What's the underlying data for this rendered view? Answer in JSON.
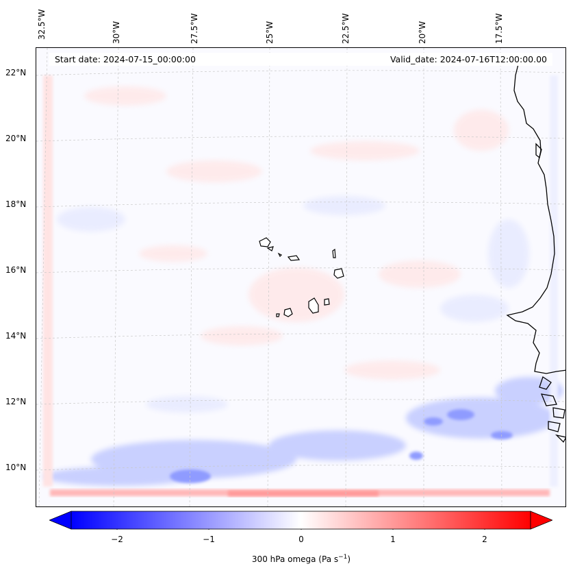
{
  "map": {
    "lon_labels": [
      "32.5°W",
      "30°W",
      "27.5°W",
      "25°W",
      "22.5°W",
      "20°W",
      "17.5°W"
    ],
    "lat_labels": [
      "22°N",
      "20°N",
      "18°N",
      "16°N",
      "14°N",
      "12°N",
      "10°N"
    ],
    "start_date": "Start date: 2024-07-15_00:00:00",
    "valid_date": "Valid_date: 2024-07-16T12:00:00.00"
  },
  "colorbar": {
    "ticks": [
      "−2",
      "−1",
      "0",
      "1",
      "2"
    ],
    "title_main": "300 hPa omega (Pa s",
    "title_sup": "−1",
    "title_end": ")",
    "min": -2.5,
    "max": 2.5,
    "low_color": "#0000ff",
    "mid_color": "#ffffff",
    "high_color": "#ff0000"
  }
}
